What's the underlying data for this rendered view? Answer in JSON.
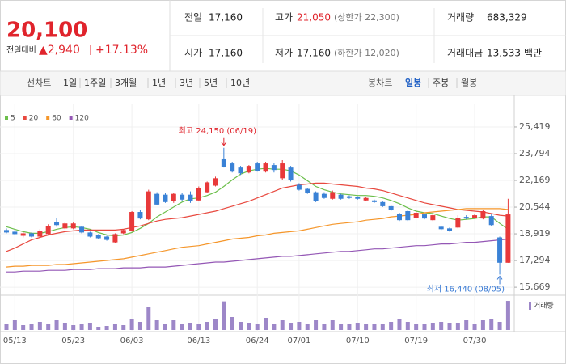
{
  "header": {
    "price": "20,100",
    "change_label": "전일대비",
    "change": "▲2,940",
    "change_rate": "+17.13%",
    "stats": [
      {
        "label": "전일",
        "value": "17,160"
      },
      {
        "label": "고가",
        "value": "21,050",
        "note": "(상한가 22,300)",
        "color": "#e0242c"
      },
      {
        "label": "거래량",
        "value": "683,329"
      },
      {
        "label": "시가",
        "value": "17,160"
      },
      {
        "label": "저가",
        "value": "17,160",
        "note": "(하한가 12,020)"
      },
      {
        "label": "거래대금",
        "value": "13,533",
        "unit": "백만"
      }
    ]
  },
  "toolbar": {
    "line_label": "선차트",
    "line_periods": [
      "1일",
      "1주일",
      "3개월",
      "1년",
      "3년",
      "5년",
      "10년"
    ],
    "candle_label": "봉차트",
    "candle_periods": [
      "일봉",
      "주봉",
      "월봉"
    ],
    "selected": 0
  },
  "chart_data": {
    "type": "candlestick",
    "categories": [
      null,
      "05/13",
      null,
      null,
      null,
      null,
      null,
      null,
      "05/23",
      null,
      null,
      null,
      null,
      null,
      null,
      "06/03",
      null,
      null,
      null,
      null,
      null,
      null,
      null,
      "06/13",
      null,
      null,
      null,
      null,
      null,
      null,
      "06/24",
      null,
      null,
      null,
      null,
      "07/01",
      null,
      null,
      null,
      null,
      null,
      null,
      "07/10",
      null,
      null,
      null,
      null,
      null,
      null,
      "07/19",
      null,
      null,
      null,
      null,
      null,
      null,
      "07/30",
      null,
      null,
      null,
      null
    ],
    "open": [
      19150,
      19050,
      18800,
      18950,
      18750,
      18900,
      19650,
      19250,
      19250,
      19350,
      19000,
      18850,
      18750,
      18400,
      18950,
      19100,
      20250,
      19800,
      21350,
      21300,
      20900,
      21300,
      21300,
      20950,
      21450,
      21850,
      23500,
      23200,
      22950,
      22650,
      23200,
      22700,
      23100,
      22300,
      22950,
      21900,
      21650,
      21450,
      21350,
      21050,
      21300,
      21200,
      21150,
      20950,
      20950,
      20850,
      20600,
      20150,
      20300,
      19900,
      20100,
      19750,
      19350,
      19250,
      19300,
      19950,
      19900,
      19850,
      20000,
      18700,
      17160
    ],
    "high": [
      19250,
      19150,
      19050,
      19000,
      19200,
      19500,
      19900,
      19600,
      19650,
      19400,
      19050,
      18900,
      18800,
      18950,
      19200,
      20300,
      20350,
      21600,
      21450,
      21400,
      21400,
      21400,
      21500,
      21800,
      22100,
      22400,
      24150,
      23300,
      23050,
      23100,
      23300,
      23300,
      23200,
      23400,
      23050,
      22000,
      21700,
      21500,
      21450,
      21550,
      21350,
      21250,
      21200,
      21150,
      21000,
      20900,
      20650,
      20200,
      20400,
      20300,
      20150,
      20100,
      19400,
      19300,
      20050,
      20050,
      20100,
      20350,
      20100,
      18750,
      21050
    ],
    "low": [
      18950,
      18850,
      18700,
      18700,
      18700,
      18850,
      19350,
      19200,
      19200,
      18950,
      18700,
      18600,
      18500,
      18350,
      18900,
      19050,
      19800,
      19750,
      20650,
      20800,
      20800,
      20900,
      20800,
      20900,
      21400,
      21800,
      22950,
      22650,
      22500,
      22600,
      22700,
      22650,
      22650,
      22200,
      22100,
      21550,
      21350,
      20850,
      21050,
      21000,
      21000,
      21050,
      21000,
      20900,
      20800,
      20550,
      20300,
      19700,
      19700,
      19850,
      19800,
      19700,
      19150,
      19050,
      19250,
      19800,
      19850,
      19800,
      19400,
      16440,
      17160
    ],
    "close": [
      19000,
      18900,
      18950,
      18750,
      19100,
      19400,
      19450,
      19550,
      19550,
      19000,
      18750,
      18650,
      18550,
      18900,
      19150,
      20250,
      19850,
      21500,
      20700,
      20850,
      21350,
      21000,
      20900,
      21700,
      22050,
      22300,
      23000,
      22700,
      22600,
      23050,
      22750,
      23200,
      22800,
      23200,
      22200,
      21600,
      21400,
      20900,
      21100,
      21450,
      21050,
      21100,
      21050,
      21100,
      20850,
      20600,
      20350,
      19750,
      19750,
      20200,
      19850,
      20050,
      19200,
      19100,
      19900,
      19850,
      20050,
      20300,
      19450,
      17160,
      20100
    ],
    "up_color": "#e8393a",
    "down_color": "#3a82d6",
    "moving_averages": [
      {
        "name": "5",
        "color": "#6cbf4b",
        "values": [
          19350,
          19200,
          19050,
          18950,
          18950,
          19050,
          19200,
          19300,
          19350,
          19300,
          19200,
          19000,
          18850,
          18800,
          18850,
          19000,
          19250,
          19550,
          19950,
          20250,
          20550,
          20850,
          21050,
          21100,
          21250,
          21450,
          21800,
          22200,
          22550,
          22750,
          22850,
          22900,
          22850,
          22850,
          22750,
          22500,
          22150,
          21800,
          21600,
          21450,
          21350,
          21300,
          21250,
          21250,
          21200,
          21100,
          20950,
          20750,
          20500,
          20300,
          20200,
          20150,
          20000,
          19850,
          19750,
          19800,
          19850,
          19950,
          19950,
          19550,
          19200
        ]
      },
      {
        "name": "20",
        "color": "#e8493f",
        "values": [
          17850,
          18050,
          18300,
          18550,
          18700,
          18850,
          18950,
          19050,
          19100,
          19150,
          19150,
          19150,
          19150,
          19150,
          19200,
          19300,
          19400,
          19550,
          19700,
          19800,
          19850,
          19900,
          20000,
          20100,
          20200,
          20300,
          20450,
          20600,
          20750,
          20900,
          21100,
          21300,
          21500,
          21700,
          21800,
          21900,
          21950,
          22000,
          22000,
          21950,
          21900,
          21850,
          21800,
          21700,
          21650,
          21550,
          21400,
          21250,
          21100,
          20950,
          20800,
          20700,
          20600,
          20500,
          20400,
          20350,
          20300,
          20250,
          20150,
          20050,
          20000
        ]
      },
      {
        "name": "60",
        "color": "#f5962a",
        "values": [
          16900,
          16950,
          16950,
          17000,
          17000,
          17000,
          17050,
          17050,
          17100,
          17150,
          17200,
          17250,
          17300,
          17350,
          17400,
          17500,
          17600,
          17700,
          17800,
          17900,
          18000,
          18100,
          18150,
          18200,
          18300,
          18400,
          18500,
          18600,
          18650,
          18700,
          18800,
          18850,
          18950,
          19000,
          19050,
          19100,
          19200,
          19300,
          19400,
          19500,
          19550,
          19600,
          19650,
          19750,
          19800,
          19850,
          19950,
          20000,
          20050,
          20100,
          20200,
          20250,
          20300,
          20350,
          20400,
          20450,
          20450,
          20450,
          20450,
          20450,
          20400
        ]
      },
      {
        "name": "120",
        "color": "#9457b5",
        "values": [
          16600,
          16600,
          16650,
          16650,
          16650,
          16700,
          16700,
          16700,
          16750,
          16750,
          16750,
          16800,
          16800,
          16800,
          16850,
          16850,
          16850,
          16900,
          16900,
          16900,
          16950,
          17000,
          17050,
          17100,
          17150,
          17200,
          17200,
          17250,
          17300,
          17350,
          17400,
          17450,
          17500,
          17550,
          17550,
          17600,
          17650,
          17700,
          17750,
          17800,
          17850,
          17850,
          17900,
          17950,
          18000,
          18000,
          18050,
          18100,
          18150,
          18200,
          18200,
          18250,
          18300,
          18300,
          18350,
          18400,
          18400,
          18450,
          18500,
          18550,
          18600
        ]
      }
    ],
    "volume": {
      "name": "거래량",
      "color": "#9d87c8",
      "ylim": [
        0,
        760000
      ],
      "values": [
        152000,
        228000,
        114000,
        133000,
        190000,
        152000,
        228000,
        171000,
        114000,
        152000,
        171000,
        76000,
        95000,
        133000,
        114000,
        266000,
        190000,
        532000,
        247000,
        152000,
        228000,
        152000,
        171000,
        133000,
        190000,
        266000,
        672000,
        304000,
        190000,
        171000,
        152000,
        285000,
        152000,
        247000,
        171000,
        190000,
        152000,
        228000,
        133000,
        228000,
        133000,
        152000,
        171000,
        133000,
        133000,
        152000,
        190000,
        266000,
        190000,
        152000,
        152000,
        171000,
        190000,
        171000,
        171000,
        247000,
        152000,
        228000,
        266000,
        190000,
        683329
      ]
    },
    "ylim": [
      15330,
      25860
    ],
    "yticks": [
      {
        "value": 25419,
        "label": "25,419"
      },
      {
        "value": 23794,
        "label": "23,794"
      },
      {
        "value": 22169,
        "label": "22,169"
      },
      {
        "value": 20544,
        "label": "20,544"
      },
      {
        "value": 18919,
        "label": "18,919"
      },
      {
        "value": 17294,
        "label": "17,294"
      },
      {
        "value": 15669,
        "label": "15,669"
      }
    ],
    "grid": true,
    "annotations": [
      {
        "text": "최고 24,150 (06/19)",
        "x": 26,
        "y": 24150,
        "color": "#e0242c",
        "position": "above"
      },
      {
        "text": "최저 16,440 (08/05)",
        "x": 59,
        "y": 16440,
        "color": "#3a7bd5",
        "position": "below"
      }
    ]
  }
}
